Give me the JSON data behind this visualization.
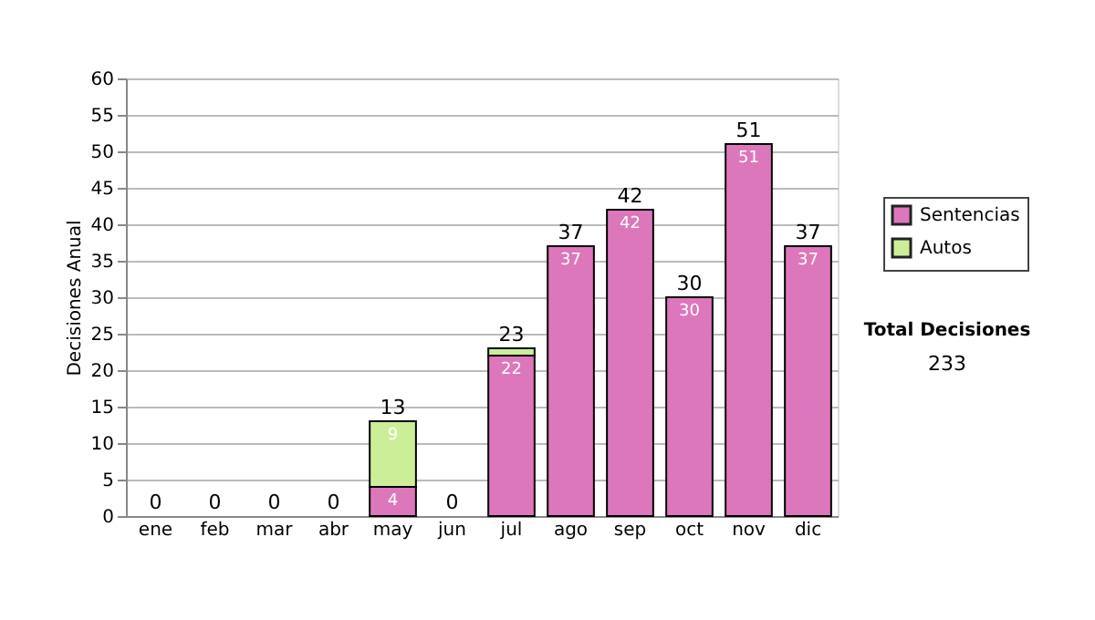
{
  "chart_data": {
    "type": "bar",
    "stacked": true,
    "ylabel": "Decisiones Anual",
    "categories": [
      "ene",
      "feb",
      "mar",
      "abr",
      "may",
      "jun",
      "jul",
      "ago",
      "sep",
      "oct",
      "nov",
      "dic"
    ],
    "series": [
      {
        "name": "Sentencias",
        "color": "#dd77bb",
        "values": [
          0,
          0,
          0,
          0,
          4,
          0,
          22,
          37,
          42,
          30,
          51,
          37
        ],
        "value_labels": [
          null,
          null,
          null,
          null,
          "4",
          null,
          "22",
          "37",
          "42",
          "30",
          "51",
          "37"
        ]
      },
      {
        "name": "Autos",
        "color": "#ccee99",
        "values": [
          0,
          0,
          0,
          0,
          9,
          0,
          1,
          0,
          0,
          0,
          0,
          0
        ],
        "value_labels": [
          null,
          null,
          null,
          null,
          "9",
          null,
          null,
          null,
          null,
          null,
          null,
          null
        ]
      }
    ],
    "totals": [
      "0",
      "0",
      "0",
      "0",
      "13",
      "0",
      "23",
      "37",
      "42",
      "30",
      "51",
      "37"
    ],
    "ylim": [
      0,
      60
    ],
    "yticks": [
      0,
      5,
      10,
      15,
      20,
      25,
      30,
      35,
      40,
      45,
      50,
      55,
      60
    ],
    "grid": "y",
    "legend": "right",
    "annotations": [
      "Total Decisiones",
      "233"
    ]
  }
}
